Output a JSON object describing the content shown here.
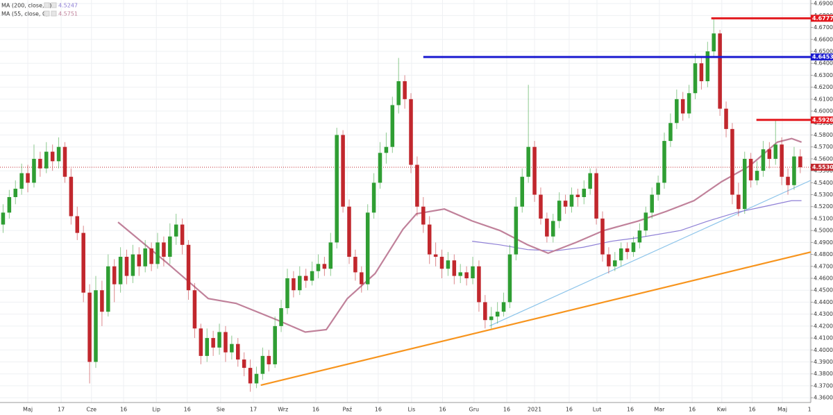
{
  "chart_data": {
    "type": "candlestick",
    "up_color": "#2f9e33",
    "down_color": "#c1272d",
    "grid": true,
    "xlim": [
      -0.5,
      130.7
    ],
    "ylim": [
      4.356,
      4.693
    ],
    "xticks": [
      {
        "value": 4.0,
        "label": "Maj"
      },
      {
        "value": 9.4,
        "label": "17"
      },
      {
        "value": 14.3,
        "label": "Cze"
      },
      {
        "value": 19.5,
        "label": "16"
      },
      {
        "value": 24.8,
        "label": "Lip"
      },
      {
        "value": 29.8,
        "label": "16"
      },
      {
        "value": 35.2,
        "label": "Sie"
      },
      {
        "value": 40.5,
        "label": "17"
      },
      {
        "value": 45.3,
        "label": "Wrz"
      },
      {
        "value": 50.6,
        "label": "16"
      },
      {
        "value": 55.7,
        "label": "Paź"
      },
      {
        "value": 60.7,
        "label": "16"
      },
      {
        "value": 66.1,
        "label": "Lis"
      },
      {
        "value": 71.1,
        "label": "16"
      },
      {
        "value": 76.2,
        "label": "Gru"
      },
      {
        "value": 81.5,
        "label": "16"
      },
      {
        "value": 86.0,
        "label": "2021"
      },
      {
        "value": 91.6,
        "label": "16"
      },
      {
        "value": 96.1,
        "label": "Lut"
      },
      {
        "value": 101.5,
        "label": "16"
      },
      {
        "value": 106.2,
        "label": "Mar"
      },
      {
        "value": 111.5,
        "label": "16"
      },
      {
        "value": 116.3,
        "label": "Kwi"
      },
      {
        "value": 121.2,
        "label": "16"
      },
      {
        "value": 126.1,
        "label": "Maj"
      },
      {
        "value": 130.5,
        "label": "1"
      }
    ],
    "yticks": [
      {
        "value": 4.36,
        "label": "4.3600"
      },
      {
        "value": 4.37,
        "label": "4.3700"
      },
      {
        "value": 4.38,
        "label": "4.3800"
      },
      {
        "value": 4.39,
        "label": "4.3900"
      },
      {
        "value": 4.4,
        "label": "4.4000"
      },
      {
        "value": 4.41,
        "label": "4.4100"
      },
      {
        "value": 4.42,
        "label": "4.4200"
      },
      {
        "value": 4.43,
        "label": "4.4300"
      },
      {
        "value": 4.44,
        "label": "4.4400"
      },
      {
        "value": 4.45,
        "label": "4.4500"
      },
      {
        "value": 4.46,
        "label": "4.4600"
      },
      {
        "value": 4.47,
        "label": "4.4700"
      },
      {
        "value": 4.48,
        "label": "4.4800"
      },
      {
        "value": 4.49,
        "label": "4.4900"
      },
      {
        "value": 4.5,
        "label": "4.5000"
      },
      {
        "value": 4.51,
        "label": "4.5100"
      },
      {
        "value": 4.52,
        "label": "4.5200"
      },
      {
        "value": 4.53,
        "label": "4.5300"
      },
      {
        "value": 4.54,
        "label": "4.5400"
      },
      {
        "value": 4.55,
        "label": "4.5500"
      },
      {
        "value": 4.56,
        "label": "4.5600"
      },
      {
        "value": 4.57,
        "label": "4.5700"
      },
      {
        "value": 4.58,
        "label": "4.5800"
      },
      {
        "value": 4.59,
        "label": "4.5900"
      },
      {
        "value": 4.6,
        "label": "4.6000"
      },
      {
        "value": 4.61,
        "label": "4.6100"
      },
      {
        "value": 4.62,
        "label": "4.6200"
      },
      {
        "value": 4.63,
        "label": "4.6300"
      },
      {
        "value": 4.64,
        "label": "4.6400"
      },
      {
        "value": 4.65,
        "label": "4.6500"
      },
      {
        "value": 4.66,
        "label": "4.6600"
      },
      {
        "value": 4.67,
        "label": "4.6700"
      },
      {
        "value": 4.68,
        "label": "4.6800"
      },
      {
        "value": 4.69,
        "label": "4.6900"
      }
    ],
    "candles": [
      [
        4.505,
        4.522,
        4.498,
        4.515
      ],
      [
        4.515,
        4.534,
        4.51,
        4.528
      ],
      [
        4.528,
        4.542,
        4.522,
        4.535
      ],
      [
        4.535,
        4.556,
        4.53,
        4.548
      ],
      [
        4.548,
        4.555,
        4.532,
        4.54
      ],
      [
        4.54,
        4.572,
        4.536,
        4.56
      ],
      [
        4.56,
        4.566,
        4.545,
        4.552
      ],
      [
        4.552,
        4.574,
        4.548,
        4.566
      ],
      [
        4.566,
        4.572,
        4.55,
        4.558
      ],
      [
        4.558,
        4.578,
        4.552,
        4.57
      ],
      [
        4.57,
        4.574,
        4.54,
        4.545
      ],
      [
        4.545,
        4.552,
        4.505,
        4.512
      ],
      [
        4.512,
        4.52,
        4.492,
        4.498
      ],
      [
        4.498,
        4.504,
        4.44,
        4.448
      ],
      [
        4.448,
        4.455,
        4.372,
        4.39
      ],
      [
        4.39,
        4.462,
        4.385,
        4.45
      ],
      [
        4.45,
        4.458,
        4.42,
        4.432
      ],
      [
        4.432,
        4.48,
        4.428,
        4.47
      ],
      [
        4.47,
        4.476,
        4.44,
        4.455
      ],
      [
        4.455,
        4.486,
        4.448,
        4.478
      ],
      [
        4.478,
        4.484,
        4.455,
        4.462
      ],
      [
        4.462,
        4.488,
        4.456,
        4.48
      ],
      [
        4.48,
        4.486,
        4.462,
        4.47
      ],
      [
        4.47,
        4.492,
        4.465,
        4.485
      ],
      [
        4.485,
        4.49,
        4.466,
        4.472
      ],
      [
        4.472,
        4.498,
        4.468,
        4.49
      ],
      [
        4.49,
        4.495,
        4.47,
        4.478
      ],
      [
        4.478,
        4.506,
        4.472,
        4.495
      ],
      [
        4.495,
        4.514,
        4.488,
        4.505
      ],
      [
        4.505,
        4.51,
        4.48,
        4.488
      ],
      [
        4.488,
        4.492,
        4.442,
        4.45
      ],
      [
        4.45,
        4.456,
        4.41,
        4.418
      ],
      [
        4.418,
        4.422,
        4.388,
        4.395
      ],
      [
        4.395,
        4.418,
        4.39,
        4.41
      ],
      [
        4.41,
        4.416,
        4.395,
        4.402
      ],
      [
        4.402,
        4.422,
        4.396,
        4.415
      ],
      [
        4.415,
        4.42,
        4.39,
        4.398
      ],
      [
        4.398,
        4.412,
        4.392,
        4.405
      ],
      [
        4.405,
        4.41,
        4.386,
        4.392
      ],
      [
        4.392,
        4.398,
        4.378,
        4.385
      ],
      [
        4.385,
        4.392,
        4.365,
        4.372
      ],
      [
        4.372,
        4.386,
        4.368,
        4.38
      ],
      [
        4.38,
        4.402,
        4.375,
        4.395
      ],
      [
        4.395,
        4.4,
        4.382,
        4.388
      ],
      [
        4.388,
        4.428,
        4.385,
        4.42
      ],
      [
        4.42,
        4.442,
        4.415,
        4.435
      ],
      [
        4.435,
        4.468,
        4.43,
        4.46
      ],
      [
        4.46,
        4.466,
        4.444,
        4.45
      ],
      [
        4.45,
        4.47,
        4.446,
        4.462
      ],
      [
        4.462,
        4.468,
        4.452,
        4.458
      ],
      [
        4.458,
        4.474,
        4.454,
        4.466
      ],
      [
        4.466,
        4.48,
        4.46,
        4.472
      ],
      [
        4.472,
        4.478,
        4.462,
        4.468
      ],
      [
        4.468,
        4.498,
        4.462,
        4.49
      ],
      [
        4.49,
        4.586,
        4.485,
        4.58
      ],
      [
        4.58,
        4.584,
        4.515,
        4.52
      ],
      [
        4.52,
        4.526,
        4.472,
        4.478
      ],
      [
        4.478,
        4.484,
        4.458,
        4.465
      ],
      [
        4.465,
        4.47,
        4.448,
        4.455
      ],
      [
        4.455,
        4.522,
        4.45,
        4.515
      ],
      [
        4.515,
        4.548,
        4.51,
        4.54
      ],
      [
        4.54,
        4.574,
        4.535,
        4.565
      ],
      [
        4.565,
        4.582,
        4.556,
        4.57
      ],
      [
        4.57,
        4.612,
        4.565,
        4.605
      ],
      [
        4.605,
        4.6445,
        4.598,
        4.625
      ],
      [
        4.625,
        4.63,
        4.602,
        4.61
      ],
      [
        4.61,
        4.615,
        4.548,
        4.555
      ],
      [
        4.555,
        4.562,
        4.512,
        4.52
      ],
      [
        4.52,
        4.528,
        4.498,
        4.505
      ],
      [
        4.505,
        4.512,
        4.472,
        4.48
      ],
      [
        4.48,
        4.49,
        4.47,
        4.478
      ],
      [
        4.478,
        4.484,
        4.46,
        4.468
      ],
      [
        4.468,
        4.482,
        4.462,
        4.475
      ],
      [
        4.475,
        4.48,
        4.455,
        4.462
      ],
      [
        4.462,
        4.472,
        4.456,
        4.465
      ],
      [
        4.465,
        4.47,
        4.454,
        4.46
      ],
      [
        4.46,
        4.478,
        4.455,
        4.47
      ],
      [
        4.47,
        4.475,
        4.432,
        4.44
      ],
      [
        4.44,
        4.446,
        4.418,
        4.425
      ],
      [
        4.425,
        4.436,
        4.418,
        4.428
      ],
      [
        4.428,
        4.44,
        4.422,
        4.432
      ],
      [
        4.432,
        4.448,
        4.428,
        4.44
      ],
      [
        4.44,
        4.488,
        4.435,
        4.48
      ],
      [
        4.48,
        4.528,
        4.475,
        4.52
      ],
      [
        4.52,
        4.552,
        4.515,
        4.545
      ],
      [
        4.545,
        4.622,
        4.54,
        4.57
      ],
      [
        4.57,
        4.575,
        4.524,
        4.53
      ],
      [
        4.53,
        4.536,
        4.505,
        4.51
      ],
      [
        4.51,
        4.515,
        4.49,
        4.495
      ],
      [
        4.495,
        4.514,
        4.49,
        4.508
      ],
      [
        4.508,
        4.532,
        4.502,
        4.525
      ],
      [
        4.525,
        4.53,
        4.514,
        4.52
      ],
      [
        4.52,
        4.536,
        4.515,
        4.53
      ],
      [
        4.53,
        4.535,
        4.52,
        4.528
      ],
      [
        4.528,
        4.542,
        4.522,
        4.535
      ],
      [
        4.535,
        4.552,
        4.53,
        4.548
      ],
      [
        4.548,
        4.552,
        4.505,
        4.51
      ],
      [
        4.51,
        4.516,
        4.474,
        4.48
      ],
      [
        4.48,
        4.486,
        4.464,
        4.47
      ],
      [
        4.47,
        4.482,
        4.466,
        4.475
      ],
      [
        4.475,
        4.49,
        4.47,
        4.485
      ],
      [
        4.485,
        4.49,
        4.476,
        4.482
      ],
      [
        4.482,
        4.495,
        4.478,
        4.49
      ],
      [
        4.49,
        4.506,
        4.485,
        4.5
      ],
      [
        4.5,
        4.52,
        4.495,
        4.515
      ],
      [
        4.515,
        4.536,
        4.51,
        4.53
      ],
      [
        4.53,
        4.546,
        4.525,
        4.54
      ],
      [
        4.54,
        4.582,
        4.535,
        4.575
      ],
      [
        4.575,
        4.598,
        4.57,
        4.59
      ],
      [
        4.59,
        4.618,
        4.585,
        4.61
      ],
      [
        4.61,
        4.616,
        4.592,
        4.598
      ],
      [
        4.598,
        4.622,
        4.594,
        4.615
      ],
      [
        4.615,
        4.648,
        4.61,
        4.64
      ],
      [
        4.64,
        4.646,
        4.618,
        4.625
      ],
      [
        4.625,
        4.658,
        4.62,
        4.65
      ],
      [
        4.65,
        4.6777,
        4.645,
        4.665
      ],
      [
        4.665,
        4.668,
        4.596,
        4.602
      ],
      [
        4.602,
        4.608,
        4.578,
        4.585
      ],
      [
        4.585,
        4.59,
        4.522,
        4.53
      ],
      [
        4.53,
        4.54,
        4.512,
        4.518
      ],
      [
        4.518,
        4.566,
        4.514,
        4.56
      ],
      [
        4.56,
        4.565,
        4.536,
        4.542
      ],
      [
        4.542,
        4.558,
        4.538,
        4.55
      ],
      [
        4.55,
        4.575,
        4.545,
        4.568
      ],
      [
        4.568,
        4.574,
        4.552,
        4.56
      ],
      [
        4.56,
        4.592,
        4.555,
        4.572
      ],
      [
        4.572,
        4.578,
        4.538,
        4.545
      ],
      [
        4.545,
        4.552,
        4.53,
        4.538
      ],
      [
        4.538,
        4.57,
        4.534,
        4.562
      ],
      [
        4.562,
        4.568,
        4.548,
        4.553
      ]
    ],
    "series": [
      {
        "name": "MA (200, close, 0)",
        "color": "#8e7fd6",
        "last_value": 4.5247,
        "x": [
          75.9,
          80.4,
          84.9,
          89.4,
          93.9,
          98.4,
          102.8,
          109.6,
          114.1,
          118.6,
          123.1,
          127.6,
          129.2
        ],
        "values": [
          4.491,
          4.488,
          4.484,
          4.483,
          4.486,
          4.491,
          4.494,
          4.5,
          4.508,
          4.515,
          4.52,
          4.525,
          4.525
        ]
      },
      {
        "name": "MA (55, close, 0)",
        "color": "#c0819a",
        "last_value": 4.5751,
        "x": [
          18.6,
          26.5,
          33.2,
          37.7,
          44.4,
          48.9,
          52.3,
          55.7,
          60.2,
          64.7,
          66.9,
          71.4,
          75.9,
          80.4,
          84.9,
          88.2,
          92.7,
          97.2,
          102.8,
          107.3,
          111.8,
          116.3,
          120.8,
          125.3,
          127.6,
          129.2
        ],
        "values": [
          4.507,
          4.473,
          4.443,
          4.439,
          4.425,
          4.415,
          4.417,
          4.443,
          4.464,
          4.501,
          4.514,
          4.518,
          4.508,
          4.5,
          4.488,
          4.481,
          4.49,
          4.5,
          4.508,
          4.516,
          4.525,
          4.541,
          4.554,
          4.574,
          4.577,
          4.574
        ]
      }
    ],
    "trendlines": [
      {
        "color": "#f7941d",
        "x": [
          41.7,
          130.7
        ],
        "values": [
          4.3705,
          4.482
        ]
      },
      {
        "color": "#8cc4ea",
        "x": [
          78.7,
          130.7
        ],
        "values": [
          4.42,
          4.542
        ]
      }
    ],
    "levels": [
      {
        "value": 4.6777,
        "color": "#e3181e",
        "x_start": 114.6
      },
      {
        "value": 4.6453,
        "color": "#1a1ad0",
        "x_start": 68.0
      },
      {
        "value": 4.5926,
        "color": "#e3181e",
        "x_start": 121.9
      }
    ],
    "last_price": {
      "value": 4.553,
      "label": "4.5530",
      "color": "#c1272d"
    }
  }
}
